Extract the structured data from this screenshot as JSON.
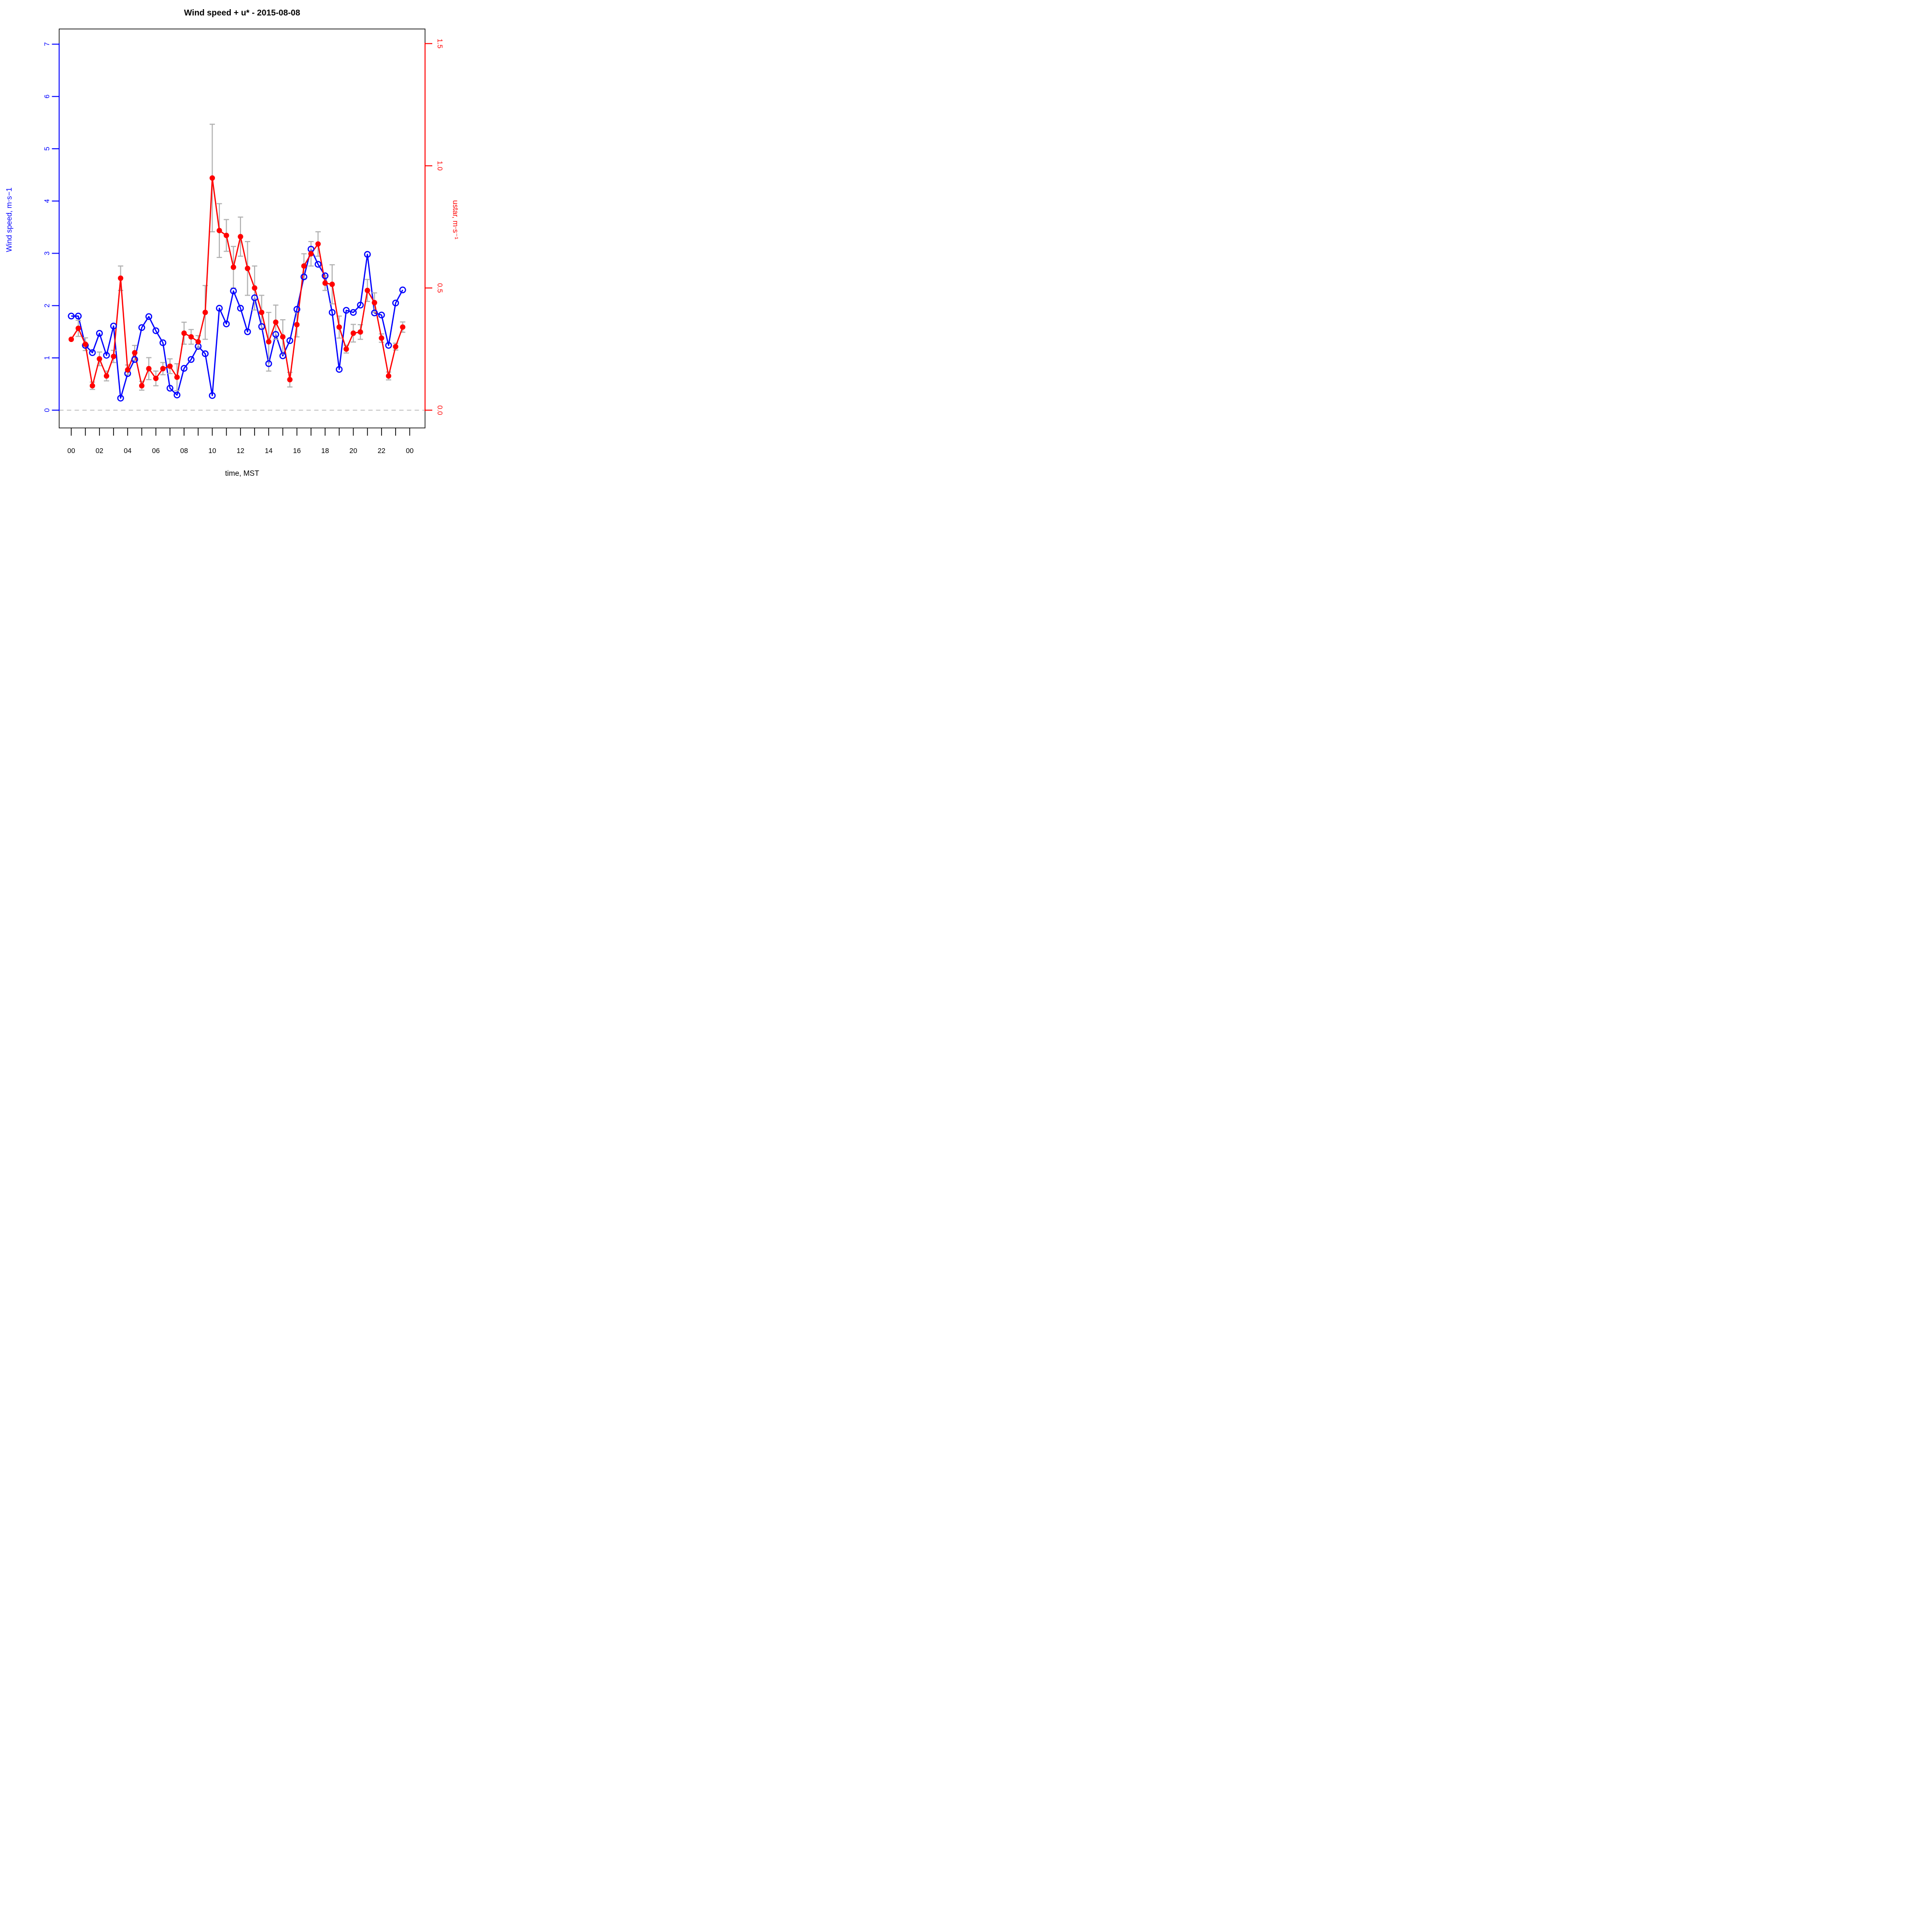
{
  "title": "Wind speed + u* -  2015-08-08",
  "chart_data": {
    "type": "line",
    "title": "Wind speed + u* -  2015-08-08",
    "xlabel": "time, MST",
    "x_tick_hours": [
      0,
      2,
      4,
      6,
      8,
      10,
      12,
      14,
      16,
      18,
      20,
      22,
      24
    ],
    "x_tick_labels": [
      "00",
      "02",
      "04",
      "06",
      "08",
      "10",
      "12",
      "14",
      "16",
      "18",
      "20",
      "22",
      "00"
    ],
    "minor_x_ticks_every_hour": true,
    "left_axis": {
      "label": "Wind speed, m⋅s−1",
      "color": "#0000ff",
      "ticks": [
        0,
        1,
        2,
        3,
        4,
        5,
        6,
        7
      ],
      "range": [
        -0.34,
        7.3
      ]
    },
    "right_axis": {
      "label": "ustar, m⋅s⁻¹",
      "color": "#ff0000",
      "ticks": [
        "0.0",
        "0.5",
        "1.0",
        "1.5"
      ],
      "tick_values": [
        0.0,
        0.5,
        1.0,
        1.5
      ],
      "range": [
        -0.074,
        1.56
      ]
    },
    "zero_line": {
      "value": 0,
      "style": "dashed",
      "color": "#a6a6a6"
    },
    "error_bar_color": "#b0b0b0",
    "hours": [
      0,
      0.5,
      1,
      1.5,
      2,
      2.5,
      3,
      3.5,
      4,
      4.5,
      5,
      5.5,
      6,
      6.5,
      7,
      7.5,
      8,
      8.5,
      9,
      9.5,
      10,
      10.5,
      11,
      11.5,
      12,
      12.5,
      13,
      13.5,
      14,
      14.5,
      15,
      15.5,
      16,
      16.5,
      17,
      17.5,
      18,
      18.5,
      19,
      19.5,
      20,
      20.5,
      21,
      21.5,
      22,
      22.5,
      23,
      23.5
    ],
    "series": [
      {
        "name": "wind_speed",
        "label": "Wind speed",
        "units": "m⋅s−1",
        "axis": "left",
        "color": "#0000ff",
        "marker": "open-circle",
        "values": [
          1.8,
          1.8,
          1.24,
          1.1,
          1.47,
          1.05,
          1.61,
          0.23,
          0.7,
          0.97,
          1.58,
          1.79,
          1.52,
          1.29,
          0.42,
          0.29,
          0.8,
          0.97,
          1.22,
          1.08,
          0.28,
          1.95,
          1.65,
          2.28,
          1.95,
          1.5,
          2.15,
          1.6,
          0.89,
          1.45,
          1.04,
          1.33,
          1.93,
          2.55,
          3.08,
          2.79,
          2.57,
          1.87,
          0.78,
          1.91,
          1.87,
          2.01,
          2.98,
          1.86,
          1.82,
          1.24,
          2.05,
          2.3
        ]
      },
      {
        "name": "ustar",
        "label": "ustar",
        "units": "m⋅s⁻¹",
        "axis": "right",
        "color": "#ff0000",
        "marker": "filled-circle",
        "values": [
          0.29,
          0.335,
          0.27,
          0.1,
          0.21,
          0.14,
          0.22,
          0.54,
          0.165,
          0.235,
          0.1,
          0.17,
          0.13,
          0.17,
          0.18,
          0.135,
          0.315,
          0.3,
          0.28,
          0.4,
          0.95,
          0.735,
          0.715,
          0.585,
          0.71,
          0.58,
          0.5,
          0.4,
          0.28,
          0.36,
          0.3,
          0.125,
          0.35,
          0.59,
          0.64,
          0.68,
          0.52,
          0.515,
          0.34,
          0.25,
          0.315,
          0.32,
          0.49,
          0.44,
          0.295,
          0.14,
          0.26,
          0.34
        ],
        "errors": [
          0,
          0.033,
          0.026,
          0.015,
          0.028,
          0.02,
          0.025,
          0.05,
          0.02,
          0.03,
          0.018,
          0.045,
          0.03,
          0.025,
          0.03,
          0.055,
          0.045,
          0.03,
          0.025,
          0.11,
          0.22,
          0.11,
          0.065,
          0.085,
          0.08,
          0.11,
          0.09,
          0.07,
          0.12,
          0.07,
          0.07,
          0.03,
          0.05,
          0.05,
          0.05,
          0.05,
          0.03,
          0.08,
          0.045,
          0.016,
          0.036,
          0.03,
          0.045,
          0.04,
          0.017,
          0.016,
          0.014,
          0.021
        ]
      }
    ]
  }
}
